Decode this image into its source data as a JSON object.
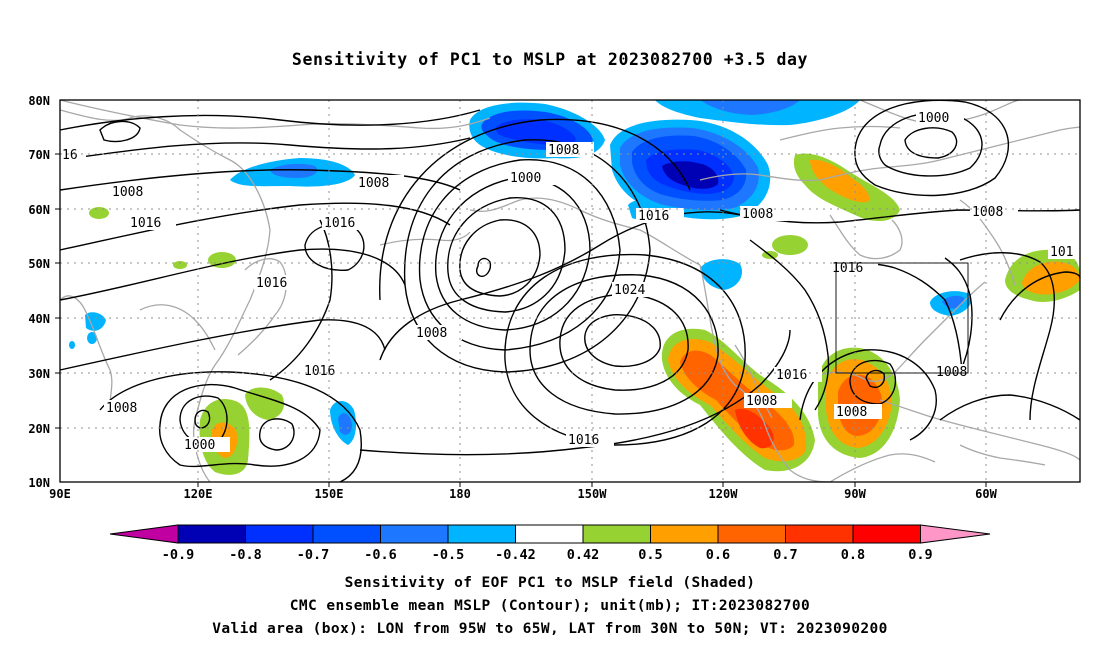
{
  "title": "Sensitivity of PC1 to MSLP at 2023082700 +3.5 day",
  "lat_labels": [
    "80N",
    "70N",
    "60N",
    "50N",
    "40N",
    "30N",
    "20N",
    "10N"
  ],
  "lon_labels": [
    "90E",
    "120E",
    "150E",
    "180",
    "150W",
    "120W",
    "90W",
    "60W"
  ],
  "contour_labels": [
    "1000",
    "1008",
    "1016",
    "1024",
    "16",
    "101"
  ],
  "colorbar": {
    "labels": [
      "-0.9",
      "-0.8",
      "-0.7",
      "-0.6",
      "-0.5",
      "-0.42",
      "0.42",
      "0.5",
      "0.6",
      "0.7",
      "0.8",
      "0.9"
    ],
    "colors": [
      "#c000a0",
      "#0000b4",
      "#0030ff",
      "#0050ff",
      "#1e78ff",
      "#00b4ff",
      "#ffffff",
      "#96d232",
      "#ffa000",
      "#ff6400",
      "#ff3200",
      "#ff0000",
      "#ff96c8"
    ]
  },
  "footer": {
    "line1": "Sensitivity of EOF PC1 to MSLP field (Shaded)",
    "line2": "CMC ensemble mean MSLP (Contour); unit(mb); IT:2023082700",
    "line3": "Valid area (box): LON from 95W to 65W, LAT from 30N to 50N; VT: 2023090200"
  }
}
